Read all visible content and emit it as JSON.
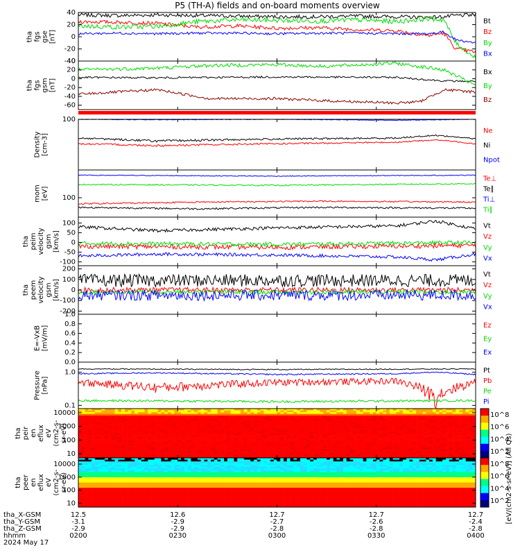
{
  "figure": {
    "title": "P5 (TH-A) fields and on-board moments overview",
    "colors": {
      "black": "#000000",
      "red": "#ff0000",
      "green": "#00dd00",
      "blue": "#0000ff",
      "darkred": "#8b0000"
    }
  },
  "chart_data": [
    {
      "type": "line",
      "panel": "fgs",
      "ylabel": [
        "tha",
        "fgs",
        "gse",
        "[nT]"
      ],
      "ylim": [
        -40,
        40
      ],
      "yticks": [
        "40",
        "20",
        "0",
        "-20",
        "-40"
      ],
      "series": [
        {
          "name": "Bt",
          "color": "#000000",
          "x": [
            0,
            0.1,
            0.2,
            0.3,
            0.4,
            0.5,
            0.6,
            0.7,
            0.8,
            0.88,
            0.92,
            0.95,
            1
          ],
          "y": [
            36,
            35,
            36,
            35,
            34,
            33,
            33,
            34,
            33,
            32,
            33,
            35,
            36
          ],
          "noise": 3
        },
        {
          "name": "Bz",
          "color": "#ff0000",
          "x": [
            0,
            0.1,
            0.2,
            0.3,
            0.4,
            0.5,
            0.6,
            0.7,
            0.8,
            0.88,
            0.92,
            0.95,
            1
          ],
          "y": [
            25,
            24,
            22,
            16,
            18,
            14,
            15,
            12,
            10,
            2,
            6,
            -20,
            -25
          ],
          "noise": 3
        },
        {
          "name": "By",
          "color": "#00dd00",
          "x": [
            0,
            0.1,
            0.2,
            0.3,
            0.4,
            0.5,
            0.6,
            0.7,
            0.8,
            0.88,
            0.92,
            0.95,
            1
          ],
          "y": [
            18,
            16,
            17,
            25,
            28,
            27,
            26,
            28,
            25,
            30,
            28,
            -10,
            -35
          ],
          "noise": 4
        },
        {
          "name": "Bx",
          "color": "#0000ff",
          "x": [
            0,
            0.1,
            0.2,
            0.3,
            0.4,
            0.5,
            0.6,
            0.7,
            0.8,
            0.88,
            0.92,
            0.95,
            1
          ],
          "y": [
            5,
            6,
            5,
            6,
            6,
            5,
            6,
            6,
            5,
            5,
            8,
            -5,
            -10
          ],
          "noise": 2
        }
      ]
    },
    {
      "type": "line",
      "panel": "fgs-gsm",
      "ylabel": [
        "tha",
        "fgs",
        "gsm",
        "[nT]"
      ],
      "ylim": [
        -70,
        40
      ],
      "yticks": [
        "40",
        "20",
        "0",
        "-20",
        "-40",
        "-60"
      ],
      "series": [
        {
          "name": "Bx",
          "color": "#000000",
          "x": [
            0,
            0.2,
            0.5,
            0.8,
            0.92,
            1
          ],
          "y": [
            3,
            2,
            4,
            3,
            -5,
            -6
          ],
          "noise": 2
        },
        {
          "name": "By",
          "color": "#00dd00",
          "x": [
            0,
            0.2,
            0.33,
            0.5,
            0.62,
            0.8,
            0.92,
            1
          ],
          "y": [
            20,
            24,
            30,
            32,
            28,
            35,
            20,
            -15
          ],
          "noise": 4
        },
        {
          "name": "Bz",
          "color": "#8b0000",
          "x": [
            0,
            0.2,
            0.33,
            0.5,
            0.62,
            0.8,
            0.86,
            0.92,
            1
          ],
          "y": [
            -35,
            -25,
            -45,
            -45,
            -50,
            -55,
            -52,
            -25,
            -30
          ],
          "noise": 3
        }
      ]
    },
    {
      "type": "line",
      "panel": "density",
      "ylabel": [
        "Density",
        "[cm-3]"
      ],
      "ylim": [
        0.2,
        100
      ],
      "yticks": [
        "100"
      ],
      "series": [
        {
          "name": "Ne",
          "color": "#ff0000",
          "x": [
            0,
            0.2,
            0.5,
            0.8,
            0.9,
            1
          ],
          "y": [
            5,
            4,
            5,
            6,
            8,
            5
          ],
          "noise": 0.5
        },
        {
          "name": "Ni",
          "color": "#000000",
          "x": [
            0,
            0.2,
            0.5,
            0.8,
            0.9,
            1
          ],
          "y": [
            10,
            7,
            9,
            10,
            14,
            9
          ],
          "noise": 1
        },
        {
          "name": "Npot",
          "color": "#0000ff",
          "x": [
            0,
            0.2,
            0.5,
            0.8,
            1
          ],
          "y": [
            100,
            95,
            100,
            90,
            100
          ],
          "noise": 3
        }
      ]
    },
    {
      "type": "line",
      "panel": "temperature",
      "ylabel": [
        "mom",
        "[eV]"
      ],
      "ylim": [
        20,
        1000
      ],
      "yticks": [
        "100"
      ],
      "series": [
        {
          "name": "Te⊥",
          "color": "#ff0000",
          "x": [
            0,
            0.3,
            0.6,
            1
          ],
          "y": [
            60,
            70,
            75,
            70
          ],
          "noise": 4
        },
        {
          "name": "Te∥",
          "color": "#000000",
          "x": [
            0,
            0.3,
            0.6,
            1
          ],
          "y": [
            45,
            40,
            45,
            42
          ],
          "noise": 3
        },
        {
          "name": "Ti⊥",
          "color": "#0000ff",
          "x": [
            0,
            0.5,
            1
          ],
          "y": [
            650,
            600,
            650
          ],
          "noise": 20
        },
        {
          "name": "Ti∥",
          "color": "#00dd00",
          "x": [
            0,
            0.5,
            1
          ],
          "y": [
            300,
            280,
            320
          ],
          "noise": 15
        }
      ]
    },
    {
      "type": "line",
      "panel": "peim-velocity",
      "ylabel": [
        "tha",
        "peim",
        "velocity",
        "gsm",
        "[km/s]"
      ],
      "ylim": [
        -120,
        130
      ],
      "yticks": [
        "100",
        "50",
        "0",
        "-50",
        "-100"
      ],
      "series": [
        {
          "name": "Vt",
          "color": "#000000",
          "x": [
            0,
            0.2,
            0.5,
            0.8,
            0.9,
            1
          ],
          "y": [
            80,
            60,
            75,
            85,
            110,
            70
          ],
          "noise": 8
        },
        {
          "name": "Vz",
          "color": "#ff0000",
          "x": [
            0,
            0.5,
            1
          ],
          "y": [
            -20,
            -25,
            -15
          ],
          "noise": 12
        },
        {
          "name": "Vy",
          "color": "#00dd00",
          "x": [
            0,
            0.5,
            1
          ],
          "y": [
            -5,
            -10,
            0
          ],
          "noise": 10
        },
        {
          "name": "Vx",
          "color": "#0000ff",
          "x": [
            0,
            0.2,
            0.5,
            0.8,
            0.9,
            1
          ],
          "y": [
            -70,
            -60,
            -65,
            -75,
            -90,
            -60
          ],
          "noise": 8
        }
      ]
    },
    {
      "type": "line",
      "panel": "peem-velocity",
      "ylabel": [
        "tha",
        "peem",
        "velocity",
        "gsm",
        "[km/s]"
      ],
      "ylim": [
        -230,
        230
      ],
      "yticks": [
        "200",
        "100",
        "0",
        "-100",
        "-200"
      ],
      "series": [
        {
          "name": "Vt",
          "color": "#000000",
          "x": [
            0,
            1
          ],
          "y": [
            90,
            90
          ],
          "noise": 60
        },
        {
          "name": "Vz",
          "color": "#ff0000",
          "x": [
            0,
            1
          ],
          "y": [
            0,
            0
          ],
          "noise": 25
        },
        {
          "name": "Vy",
          "color": "#00dd00",
          "x": [
            0,
            1
          ],
          "y": [
            -20,
            -20
          ],
          "noise": 20
        },
        {
          "name": "Vx",
          "color": "#0000ff",
          "x": [
            0,
            1
          ],
          "y": [
            -50,
            -50
          ],
          "noise": 50
        }
      ]
    },
    {
      "type": "line",
      "panel": "e-field",
      "ylabel": [
        "E=-VxB",
        "[mV/m]"
      ],
      "ylim": [
        0,
        1
      ],
      "yticks": [
        "1.0",
        "0.8",
        "0.6",
        "0.4",
        "0.2",
        "0.0"
      ],
      "series": [
        {
          "name": "Ez",
          "color": "#ff0000",
          "x": [],
          "y": []
        },
        {
          "name": "Ey",
          "color": "#00dd00",
          "x": [],
          "y": []
        },
        {
          "name": "Ex",
          "color": "#0000ff",
          "x": [],
          "y": []
        }
      ]
    },
    {
      "type": "line",
      "panel": "pressure",
      "ylabel": [
        "Pressure",
        "[nPa]"
      ],
      "ylim": [
        0.08,
        2
      ],
      "yticks": [
        "1.0",
        "0.1"
      ],
      "series": [
        {
          "name": "Pt",
          "color": "#000000",
          "x": [
            0,
            0.5,
            1
          ],
          "y": [
            1.25,
            1.2,
            1.25
          ],
          "noise": 0.04
        },
        {
          "name": "Pb",
          "color": "#ff0000",
          "x": [
            0,
            0.2,
            0.5,
            0.8,
            0.9,
            1
          ],
          "y": [
            0.5,
            0.35,
            0.5,
            0.55,
            0.2,
            0.5
          ],
          "noise": 0.12
        },
        {
          "name": "Pe",
          "color": "#00dd00",
          "x": [
            0,
            0.5,
            1
          ],
          "y": [
            0.14,
            0.13,
            0.14
          ],
          "noise": 0.01
        },
        {
          "name": "Pi",
          "color": "#0000ff",
          "x": [
            0,
            0.2,
            0.5,
            0.8,
            0.9,
            1
          ],
          "y": [
            0.9,
            0.95,
            0.85,
            0.9,
            1.0,
            0.85
          ],
          "noise": 0.04
        }
      ]
    },
    {
      "type": "heatmap",
      "panel": "peir-eflux",
      "ylabel": [
        "tha",
        "peir",
        "en",
        "eflux",
        "eV",
        "(cm2-s-",
        "sr-eV)"
      ],
      "ylim": [
        5,
        20000
      ],
      "yticks": [
        "10000",
        "1000",
        "100",
        "10"
      ],
      "colorbar": {
        "ticks": [
          "10^8",
          "10^6",
          "10^4",
          "10^2"
        ],
        "label": "[eV/(cm2-s-sr-eV)] (All Qs)"
      }
    },
    {
      "type": "heatmap",
      "panel": "peer-eflux",
      "ylabel": [
        "tha",
        "peer",
        "en",
        "eflux",
        "eV",
        "(cm2-s-",
        "sr-eV)"
      ],
      "ylim": [
        5,
        30000
      ],
      "yticks": [
        "10000",
        "1000",
        "100",
        "10"
      ],
      "colorbar": {
        "ticks": [
          "10^8",
          "10^6",
          "10^4",
          "10^2"
        ],
        "label": "[eV/(cm2-s-sr-eV)]"
      }
    }
  ],
  "xaxis": {
    "rows": [
      {
        "label": "tha_X-GSM",
        "values": [
          "12.5",
          "12.6",
          "12.7",
          "12.7",
          "12.7"
        ]
      },
      {
        "label": "tha_Y-GSM",
        "values": [
          "-3.1",
          "-2.9",
          "-2.7",
          "-2.6",
          "-2.4"
        ]
      },
      {
        "label": "tha_Z-GSM",
        "values": [
          "-2.9",
          "-2.9",
          "-2.8",
          "-2.8",
          "-2.8"
        ]
      },
      {
        "label": "hhmm",
        "values": [
          "0200",
          "0230",
          "0300",
          "0330",
          "0400"
        ]
      }
    ],
    "date": "2024 May 17"
  }
}
